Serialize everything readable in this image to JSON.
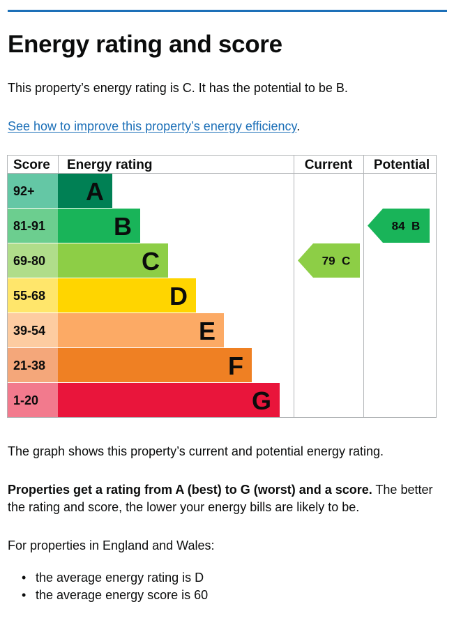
{
  "heading": "Energy rating and score",
  "intro_text": "This property’s energy rating is C. It has the potential to be B.",
  "improve_link": "See how to improve this property’s energy efficiency",
  "improve_link_suffix": ".",
  "table_headers": {
    "score": "Score",
    "energy_rating": "Energy rating",
    "current": "Current",
    "potential": "Potential"
  },
  "bands": [
    {
      "score": "92+",
      "letter": "A",
      "color": "#008054",
      "light": "#64c7a5"
    },
    {
      "score": "81-91",
      "letter": "B",
      "color": "#19b459",
      "light": "#6cce8f"
    },
    {
      "score": "69-80",
      "letter": "C",
      "color": "#8dce46",
      "light": "#b0dd8a"
    },
    {
      "score": "55-68",
      "letter": "D",
      "color": "#ffd500",
      "light": "#ffe66b"
    },
    {
      "score": "39-54",
      "letter": "E",
      "color": "#fcaa65",
      "light": "#fdcca1"
    },
    {
      "score": "21-38",
      "letter": "F",
      "color": "#ef8023",
      "light": "#f4a77a"
    },
    {
      "score": "1-20",
      "letter": "G",
      "color": "#e9153b",
      "light": "#f27a8d"
    }
  ],
  "current": {
    "score": "79",
    "letter": "C",
    "color": "#8dce46"
  },
  "potential": {
    "score": "84",
    "letter": "B",
    "color": "#19b459"
  },
  "graph_note": "The graph shows this property’s current and potential energy rating.",
  "ratings_bold": "Properties get a rating from A (best) to G (worst) and a score.",
  "ratings_rest": " The better the rating and score, the lower your energy bills are likely to be.",
  "region_text": "For properties in England and Wales:",
  "averages": [
    "the average energy rating is D",
    "the average energy score is 60"
  ]
}
